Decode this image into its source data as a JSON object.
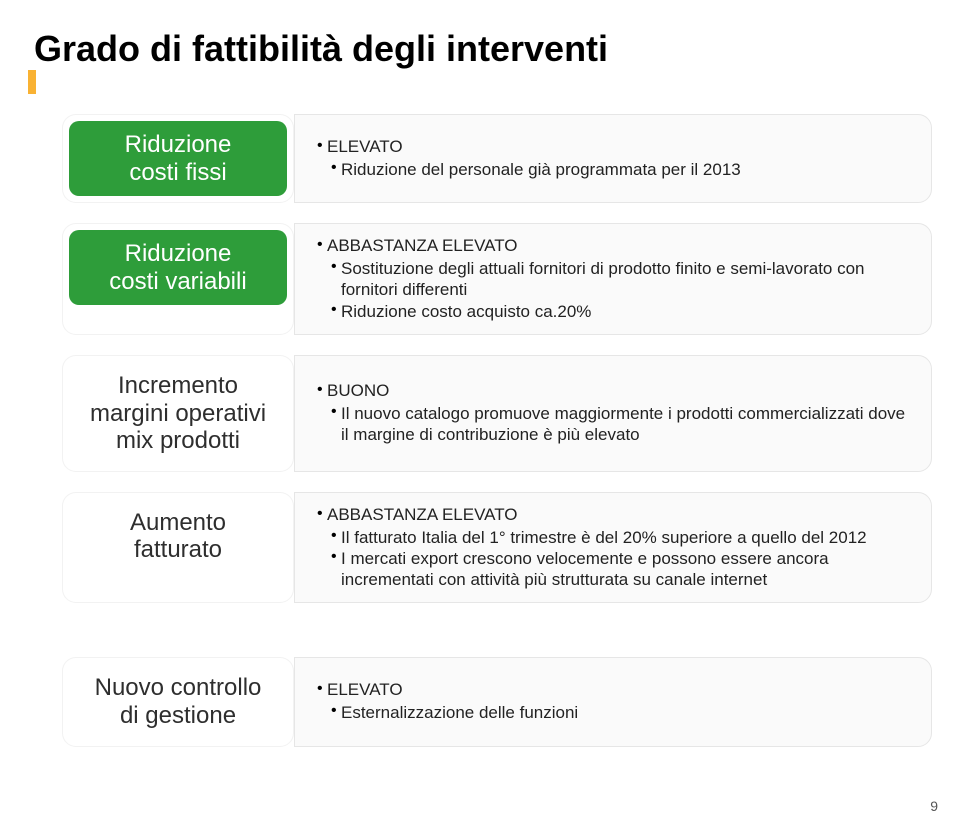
{
  "title": "Grado di fattibilità degli interventi",
  "colors": {
    "accent": "#f9b233",
    "green": "#2e9d3a",
    "card_bg": "#fafafa",
    "card_border": "#e6e6e6",
    "text": "#222222",
    "page_bg": "#ffffff"
  },
  "rows": [
    {
      "pill_style": "green",
      "pill_lines": [
        "Riduzione",
        "costi fissi"
      ],
      "level1": "ELEVATO",
      "level2": [
        "Riduzione del personale già programmata per il 2013"
      ]
    },
    {
      "pill_style": "green",
      "pill_lines": [
        "Riduzione",
        "costi variabili"
      ],
      "level1": "ABBASTANZA ELEVATO",
      "level2": [
        "Sostituzione degli attuali fornitori di prodotto finito e semi-lavorato con fornitori differenti",
        "Riduzione costo acquisto ca.20%"
      ]
    },
    {
      "pill_style": "white",
      "pill_lines": [
        "Incremento",
        "margini operativi",
        "mix prodotti"
      ],
      "level1": "BUONO",
      "level2": [
        "Il nuovo catalogo promuove maggiormente i prodotti commercializzati dove il margine di contribuzione è più elevato"
      ]
    },
    {
      "pill_style": "white",
      "pill_lines": [
        "Aumento",
        "fatturato"
      ],
      "level1": "ABBASTANZA ELEVATO",
      "level2": [
        "Il fatturato Italia del 1° trimestre è del 20% superiore a quello del 2012",
        "I mercati export crescono velocemente e possono essere ancora incrementati con attività più strutturata su canale internet"
      ]
    },
    {
      "pill_style": "white",
      "pill_lines": [
        "Nuovo controllo",
        "di gestione"
      ],
      "level1": "ELEVATO",
      "level2": [
        "Esternalizzazione delle funzioni"
      ]
    }
  ],
  "page_number": "9"
}
